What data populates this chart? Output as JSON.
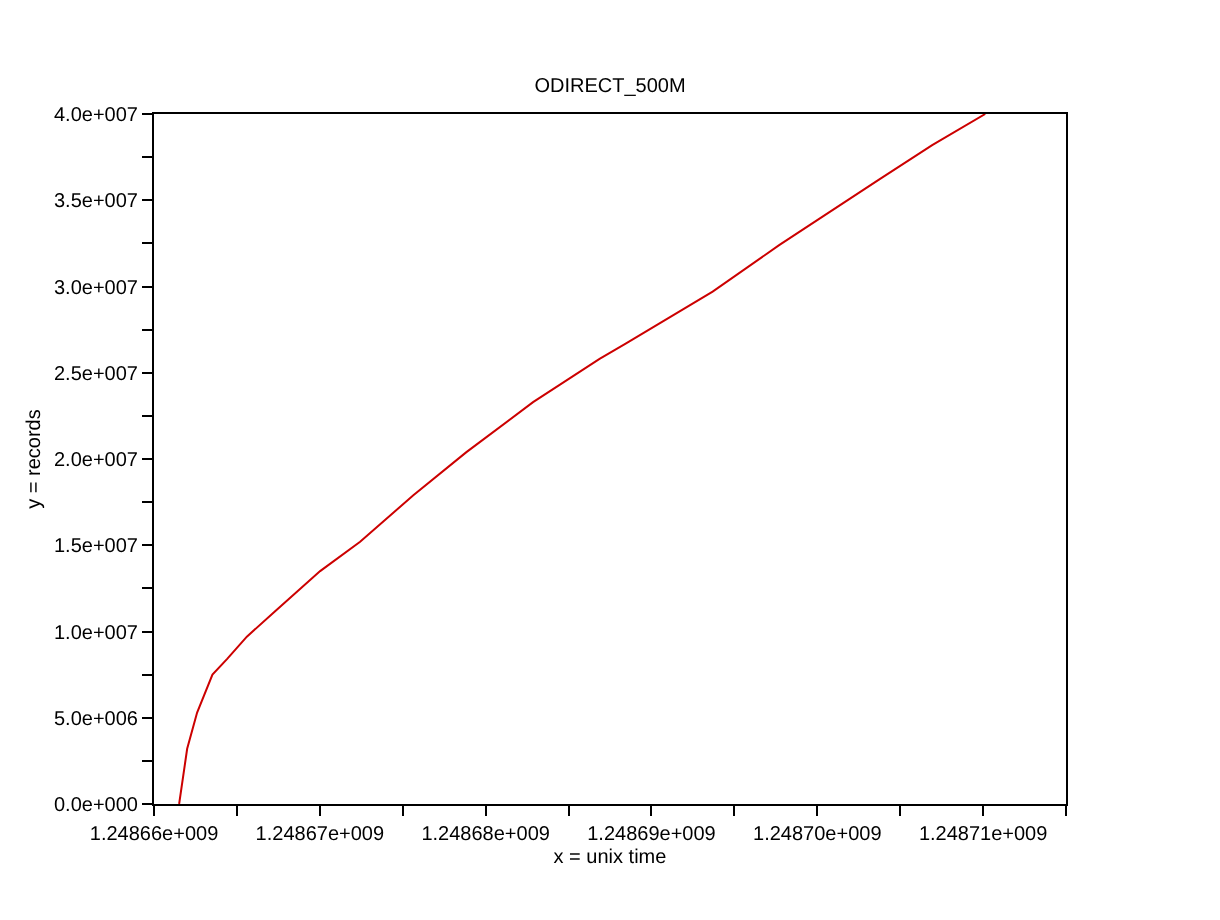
{
  "chart_data": {
    "type": "line",
    "title": "ODIRECT_500M",
    "xlabel": "x = unix time",
    "ylabel": "y = records",
    "x": [
      1248661516,
      1248662000,
      1248662600,
      1248663525,
      1248664400,
      1248665600,
      1248667220,
      1248670020,
      1248672430,
      1248675640,
      1248678840,
      1248682860,
      1248684460,
      1248686870,
      1248688470,
      1248693690,
      1248697700,
      1248703720,
      1248706930,
      1248710130
    ],
    "series": [
      {
        "color": "#cc0000",
        "values": [
          0,
          3200000,
          5300000,
          7500000,
          8400000,
          9700000,
          11100000,
          13500000,
          15200000,
          17900000,
          20400000,
          23300000,
          24300000,
          25800000,
          26700000,
          29700000,
          32400000,
          36200000,
          38200000,
          40000000
        ]
      }
    ],
    "xlim": [
      1248660000,
      1248715000
    ],
    "xticks": [
      {
        "value": 1248660000,
        "label": "1.24866e+009"
      },
      {
        "value": 1248665000,
        "label": null
      },
      {
        "value": 1248670000,
        "label": "1.24867e+009"
      },
      {
        "value": 1248675000,
        "label": null
      },
      {
        "value": 1248680000,
        "label": "1.24868e+009"
      },
      {
        "value": 1248685000,
        "label": null
      },
      {
        "value": 1248690000,
        "label": "1.24869e+009"
      },
      {
        "value": 1248695000,
        "label": null
      },
      {
        "value": 1248700000,
        "label": "1.24870e+009"
      },
      {
        "value": 1248705000,
        "label": null
      },
      {
        "value": 1248710000,
        "label": "1.24871e+009"
      },
      {
        "value": 1248715000,
        "label": null
      }
    ],
    "ylim": [
      0,
      40000000
    ],
    "yticks": [
      {
        "value": 0,
        "label": "0.0e+000"
      },
      {
        "value": 2500000,
        "label": null
      },
      {
        "value": 5000000,
        "label": "5.0e+006"
      },
      {
        "value": 7500000,
        "label": null
      },
      {
        "value": 10000000,
        "label": "1.0e+007"
      },
      {
        "value": 12500000,
        "label": null
      },
      {
        "value": 15000000,
        "label": "1.5e+007"
      },
      {
        "value": 17500000,
        "label": null
      },
      {
        "value": 20000000,
        "label": "2.0e+007"
      },
      {
        "value": 22500000,
        "label": null
      },
      {
        "value": 25000000,
        "label": "2.5e+007"
      },
      {
        "value": 27500000,
        "label": null
      },
      {
        "value": 30000000,
        "label": "3.0e+007"
      },
      {
        "value": 32500000,
        "label": null
      },
      {
        "value": 35000000,
        "label": "3.5e+007"
      },
      {
        "value": 37500000,
        "label": null
      },
      {
        "value": 40000000,
        "label": "4.0e+007"
      }
    ],
    "marker": "none",
    "line_style": "solid"
  }
}
